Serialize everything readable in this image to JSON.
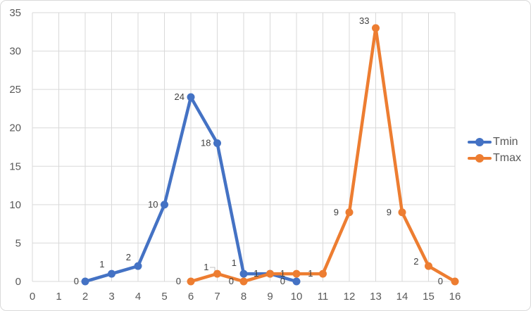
{
  "chart_data": {
    "type": "line",
    "title": "",
    "xlabel": "",
    "ylabel": "",
    "xlim": [
      0,
      16
    ],
    "ylim": [
      0,
      35
    ],
    "x_ticks": [
      0,
      1,
      2,
      3,
      4,
      5,
      6,
      7,
      8,
      9,
      10,
      11,
      12,
      13,
      14,
      15,
      16
    ],
    "y_ticks": [
      0,
      5,
      10,
      15,
      20,
      25,
      30,
      35
    ],
    "grid": true,
    "data_labels": true,
    "legend_position": "right",
    "series": [
      {
        "name": "Tmin",
        "color": "#4472C4",
        "points": [
          [
            2,
            0
          ],
          [
            3,
            1
          ],
          [
            4,
            2
          ],
          [
            5,
            10
          ],
          [
            6,
            24
          ],
          [
            7,
            18
          ],
          [
            8,
            1
          ],
          [
            9,
            1
          ],
          [
            10,
            0
          ]
        ]
      },
      {
        "name": "Tmax",
        "color": "#ED7D31",
        "points": [
          [
            6,
            0
          ],
          [
            7,
            1
          ],
          [
            8,
            0
          ],
          [
            9,
            1
          ],
          [
            10,
            1
          ],
          [
            11,
            1
          ],
          [
            12,
            9
          ],
          [
            13,
            33
          ],
          [
            14,
            9
          ],
          [
            15,
            2
          ],
          [
            16,
            0
          ]
        ]
      }
    ]
  },
  "legend": {
    "items": [
      {
        "label": "Tmin",
        "color": "#4472C4"
      },
      {
        "label": "Tmax",
        "color": "#ED7D31"
      }
    ]
  },
  "colors": {
    "grid": "#D9D9D9",
    "axis_text": "#595959",
    "data_label_text": "#404040",
    "leader_line": "#BFBFBF",
    "border": "#D9D9D9",
    "background": "#FFFFFF",
    "accent_blue": "#4472C4",
    "accent_orange": "#ED7D31"
  }
}
